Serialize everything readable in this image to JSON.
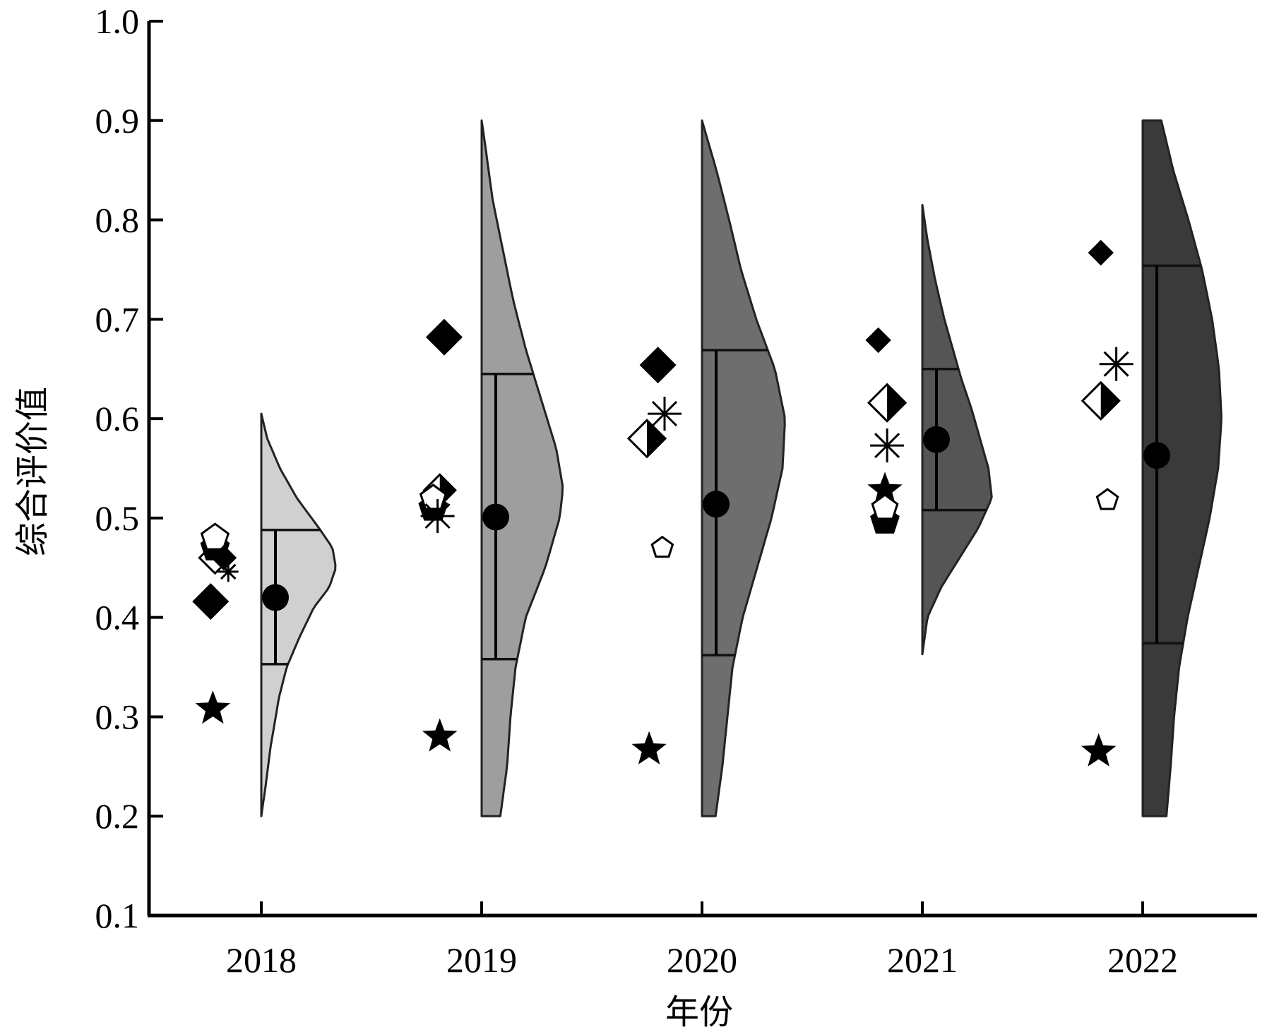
{
  "chart_data": {
    "type": "half-violin with scatter",
    "xlabel": "年份",
    "ylabel": "综合评价值",
    "ylim": [
      0.1,
      1.0
    ],
    "y_ticks": [
      "0.1",
      "0.2",
      "0.3",
      "0.4",
      "0.5",
      "0.6",
      "0.7",
      "0.8",
      "0.9",
      "1.0"
    ],
    "categories": [
      "2018",
      "2019",
      "2020",
      "2021",
      "2022"
    ],
    "fill_colors": [
      "#d0d0d0",
      "#9e9e9e",
      "#6e6e6e",
      "#555555",
      "#3a3a3a"
    ],
    "violins": [
      {
        "year": "2018",
        "min": 0.2,
        "max": 0.605,
        "mean": 0.42,
        "q1": 0.353,
        "q3": 0.488,
        "profile": [
          [
            0.2,
            0.0
          ],
          [
            0.23,
            0.05
          ],
          [
            0.27,
            0.11
          ],
          [
            0.3,
            0.17
          ],
          [
            0.32,
            0.21
          ],
          [
            0.35,
            0.3
          ],
          [
            0.38,
            0.45
          ],
          [
            0.41,
            0.62
          ],
          [
            0.43,
            0.8
          ],
          [
            0.45,
            0.88
          ],
          [
            0.47,
            0.84
          ],
          [
            0.49,
            0.68
          ],
          [
            0.52,
            0.42
          ],
          [
            0.55,
            0.22
          ],
          [
            0.58,
            0.07
          ],
          [
            0.605,
            0.0
          ]
        ]
      },
      {
        "year": "2019",
        "min": 0.2,
        "max": 0.9,
        "mean": 0.501,
        "q1": 0.358,
        "q3": 0.645,
        "profile": [
          [
            0.2,
            0.22
          ],
          [
            0.25,
            0.3
          ],
          [
            0.3,
            0.34
          ],
          [
            0.35,
            0.4
          ],
          [
            0.4,
            0.52
          ],
          [
            0.45,
            0.75
          ],
          [
            0.5,
            0.92
          ],
          [
            0.53,
            0.96
          ],
          [
            0.57,
            0.88
          ],
          [
            0.62,
            0.7
          ],
          [
            0.67,
            0.52
          ],
          [
            0.72,
            0.37
          ],
          [
            0.77,
            0.25
          ],
          [
            0.82,
            0.13
          ],
          [
            0.87,
            0.05
          ],
          [
            0.9,
            0.0
          ]
        ]
      },
      {
        "year": "2020",
        "min": 0.2,
        "max": 0.9,
        "mean": 0.514,
        "q1": 0.362,
        "q3": 0.669,
        "profile": [
          [
            0.2,
            0.16
          ],
          [
            0.25,
            0.24
          ],
          [
            0.3,
            0.3
          ],
          [
            0.35,
            0.36
          ],
          [
            0.4,
            0.48
          ],
          [
            0.45,
            0.65
          ],
          [
            0.5,
            0.82
          ],
          [
            0.55,
            0.95
          ],
          [
            0.6,
            0.98
          ],
          [
            0.65,
            0.86
          ],
          [
            0.7,
            0.64
          ],
          [
            0.75,
            0.46
          ],
          [
            0.8,
            0.32
          ],
          [
            0.85,
            0.17
          ],
          [
            0.9,
            0.0
          ]
        ]
      },
      {
        "year": "2021",
        "min": 0.363,
        "max": 0.815,
        "mean": 0.579,
        "q1": 0.508,
        "q3": 0.65,
        "profile": [
          [
            0.363,
            0.0
          ],
          [
            0.4,
            0.06
          ],
          [
            0.43,
            0.22
          ],
          [
            0.46,
            0.44
          ],
          [
            0.49,
            0.66
          ],
          [
            0.52,
            0.82
          ],
          [
            0.55,
            0.78
          ],
          [
            0.58,
            0.68
          ],
          [
            0.61,
            0.58
          ],
          [
            0.64,
            0.46
          ],
          [
            0.67,
            0.36
          ],
          [
            0.7,
            0.26
          ],
          [
            0.74,
            0.15
          ],
          [
            0.78,
            0.06
          ],
          [
            0.815,
            0.0
          ]
        ]
      },
      {
        "year": "2022",
        "min": 0.2,
        "max": 0.9,
        "mean": 0.563,
        "q1": 0.374,
        "q3": 0.754,
        "profile": [
          [
            0.2,
            0.28
          ],
          [
            0.25,
            0.33
          ],
          [
            0.3,
            0.37
          ],
          [
            0.35,
            0.43
          ],
          [
            0.4,
            0.53
          ],
          [
            0.45,
            0.66
          ],
          [
            0.5,
            0.79
          ],
          [
            0.55,
            0.89
          ],
          [
            0.6,
            0.93
          ],
          [
            0.65,
            0.9
          ],
          [
            0.7,
            0.82
          ],
          [
            0.75,
            0.7
          ],
          [
            0.8,
            0.54
          ],
          [
            0.85,
            0.36
          ],
          [
            0.9,
            0.22
          ]
        ]
      }
    ],
    "points": [
      {
        "year": "2018",
        "shape": "star",
        "y": 0.308,
        "dx": -0.22,
        "size": 1.0
      },
      {
        "year": "2018",
        "shape": "diamond-filled",
        "y": 0.416,
        "dx": -0.23,
        "size": 1.0
      },
      {
        "year": "2018",
        "shape": "diamond-open",
        "y": 0.46,
        "dx": -0.21,
        "size": 0.85
      },
      {
        "year": "2018",
        "shape": "pentagon-filled",
        "y": 0.47,
        "dx": -0.21,
        "size": 1.0
      },
      {
        "year": "2018",
        "shape": "pentagon-open",
        "y": 0.48,
        "dx": -0.21,
        "size": 0.9
      },
      {
        "year": "2018",
        "shape": "asterisk",
        "y": 0.446,
        "dx": -0.15,
        "size": 0.6
      },
      {
        "year": "2018",
        "shape": "diamond-filled",
        "y": 0.46,
        "dx": -0.17,
        "size": 0.7
      },
      {
        "year": "2019",
        "shape": "star",
        "y": 0.28,
        "dx": -0.19,
        "size": 1.0
      },
      {
        "year": "2019",
        "shape": "pentagon-filled",
        "y": 0.51,
        "dx": -0.22,
        "size": 1.0
      },
      {
        "year": "2019",
        "shape": "diamond-half",
        "y": 0.528,
        "dx": -0.19,
        "size": 0.85
      },
      {
        "year": "2019",
        "shape": "pentagon-open",
        "y": 0.52,
        "dx": -0.22,
        "size": 0.85
      },
      {
        "year": "2019",
        "shape": "asterisk",
        "y": 0.502,
        "dx": -0.2,
        "size": 1.0
      },
      {
        "year": "2019",
        "shape": "diamond-filled",
        "y": 0.682,
        "dx": -0.17,
        "size": 1.0
      },
      {
        "year": "2020",
        "shape": "star",
        "y": 0.267,
        "dx": -0.24,
        "size": 1.0
      },
      {
        "year": "2020",
        "shape": "pentagon-open",
        "y": 0.47,
        "dx": -0.18,
        "size": 0.7
      },
      {
        "year": "2020",
        "shape": "diamond-half",
        "y": 0.58,
        "dx": -0.25,
        "size": 1.0
      },
      {
        "year": "2020",
        "shape": "asterisk",
        "y": 0.605,
        "dx": -0.17,
        "size": 1.0
      },
      {
        "year": "2020",
        "shape": "diamond-filled",
        "y": 0.654,
        "dx": -0.2,
        "size": 1.0
      },
      {
        "year": "2021",
        "shape": "star",
        "y": 0.528,
        "dx": -0.17,
        "size": 1.0
      },
      {
        "year": "2021",
        "shape": "pentagon-filled",
        "y": 0.497,
        "dx": -0.17,
        "size": 1.0
      },
      {
        "year": "2021",
        "shape": "pentagon-open",
        "y": 0.51,
        "dx": -0.17,
        "size": 0.85
      },
      {
        "year": "2021",
        "shape": "asterisk",
        "y": 0.573,
        "dx": -0.16,
        "size": 1.0
      },
      {
        "year": "2021",
        "shape": "diamond-half",
        "y": 0.616,
        "dx": -0.16,
        "size": 1.0
      },
      {
        "year": "2021",
        "shape": "diamond-filled",
        "y": 0.679,
        "dx": -0.2,
        "size": 0.7
      },
      {
        "year": "2022",
        "shape": "star",
        "y": 0.265,
        "dx": -0.2,
        "size": 1.0
      },
      {
        "year": "2022",
        "shape": "pentagon-open",
        "y": 0.518,
        "dx": -0.16,
        "size": 0.7
      },
      {
        "year": "2022",
        "shape": "diamond-half",
        "y": 0.618,
        "dx": -0.19,
        "size": 1.0
      },
      {
        "year": "2022",
        "shape": "asterisk",
        "y": 0.655,
        "dx": -0.12,
        "size": 1.0
      },
      {
        "year": "2022",
        "shape": "diamond-filled",
        "y": 0.767,
        "dx": -0.19,
        "size": 0.7
      }
    ]
  }
}
